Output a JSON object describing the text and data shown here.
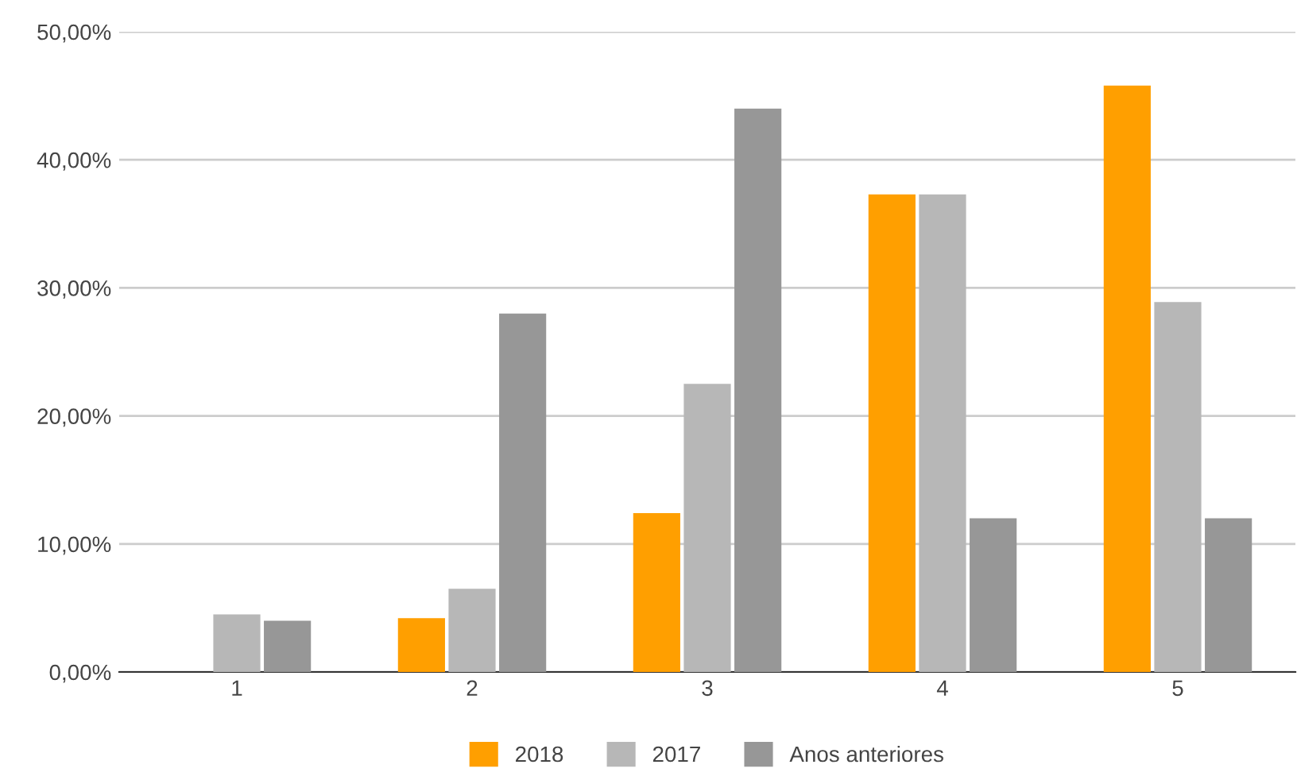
{
  "chart_data": {
    "type": "bar",
    "categories": [
      "1",
      "2",
      "3",
      "4",
      "5"
    ],
    "series": [
      {
        "name": "2018",
        "color": "#ff9f00",
        "values": [
          0,
          4.2,
          12.4,
          37.3,
          45.8
        ]
      },
      {
        "name": "2017",
        "color": "#b7b7b7",
        "values": [
          4.5,
          6.5,
          22.5,
          37.3,
          28.9
        ]
      },
      {
        "name": "Anos anteriores",
        "color": "#979797",
        "values": [
          4.0,
          28.0,
          44.0,
          12.0,
          12.0
        ]
      }
    ],
    "ylim": [
      0,
      50
    ],
    "yticks": [
      {
        "value": 0,
        "label": "0,00%"
      },
      {
        "value": 10,
        "label": "10,00%"
      },
      {
        "value": 20,
        "label": "20,00%"
      },
      {
        "value": 30,
        "label": "30,00%"
      },
      {
        "value": 40,
        "label": "40,00%"
      },
      {
        "value": 50,
        "label": "50,00%"
      }
    ],
    "grid": "y",
    "legend": "bottom"
  }
}
